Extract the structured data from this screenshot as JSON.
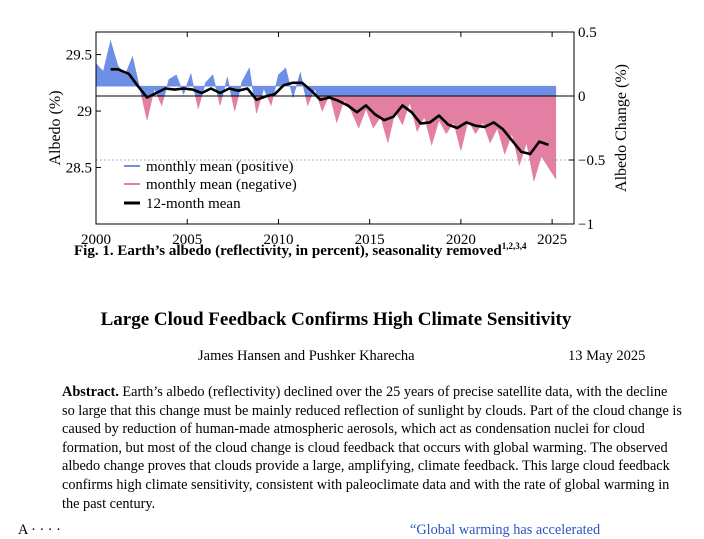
{
  "chart_data": {
    "type": "area",
    "xlabel": "",
    "ylabel": "Albedo (%)",
    "y2label": "Albedo Change (%)",
    "xlim": [
      2000,
      2026.2
    ],
    "ylim": [
      28.0,
      29.7
    ],
    "y2lim": [
      -1.0,
      0.5
    ],
    "baseline": 29.22,
    "xticks": [
      "2000",
      "2005",
      "2010",
      "2015",
      "2020",
      "2025"
    ],
    "yticks": [
      "28.5",
      "29",
      "29.5"
    ],
    "y2ticks": [
      "-1",
      "-0.5",
      "0",
      "0.5"
    ],
    "legend_position": "lower-left",
    "legend": [
      "monthly mean (positive)",
      "monthly mean (negative)",
      "12-month mean"
    ],
    "colors": {
      "positive": "#6d8fe6",
      "negative": "#e47fa4",
      "mean": "#000000",
      "reference_line": "#8fa0b8"
    },
    "series": [
      {
        "name": "12-month mean",
        "x": [
          2000.8,
          2001.2,
          2001.8,
          2002.3,
          2002.8,
          2003.3,
          2003.8,
          2004.3,
          2004.8,
          2005.3,
          2005.8,
          2006.3,
          2006.8,
          2007.3,
          2007.8,
          2008.3,
          2008.8,
          2009.3,
          2009.8,
          2010.3,
          2010.8,
          2011.3,
          2011.8,
          2012.3,
          2012.8,
          2013.3,
          2013.8,
          2014.3,
          2014.8,
          2015.3,
          2015.8,
          2016.3,
          2016.8,
          2017.3,
          2017.8,
          2018.3,
          2018.8,
          2019.3,
          2019.8,
          2020.3,
          2020.8,
          2021.3,
          2021.8,
          2022.3,
          2022.8,
          2023.3,
          2023.8,
          2024.3,
          2024.8
        ],
        "y": [
          29.37,
          29.37,
          29.33,
          29.22,
          29.12,
          29.16,
          29.2,
          29.19,
          29.2,
          29.19,
          29.16,
          29.2,
          29.16,
          29.2,
          29.18,
          29.2,
          29.1,
          29.13,
          29.15,
          29.23,
          29.25,
          29.25,
          29.18,
          29.1,
          29.12,
          29.09,
          29.05,
          28.99,
          29.05,
          28.97,
          28.92,
          28.95,
          29.05,
          28.99,
          28.89,
          28.9,
          28.96,
          28.88,
          28.85,
          28.9,
          28.87,
          28.86,
          28.9,
          28.84,
          28.74,
          28.64,
          28.62,
          28.73,
          28.7
        ]
      },
      {
        "name": "monthly mean",
        "x": [
          2000.0,
          2000.4,
          2000.8,
          2001.2,
          2001.6,
          2002.0,
          2002.4,
          2002.8,
          2003.2,
          2003.6,
          2004.0,
          2004.4,
          2004.8,
          2005.2,
          2005.6,
          2006.0,
          2006.4,
          2006.8,
          2007.2,
          2007.6,
          2008.0,
          2008.4,
          2008.8,
          2009.2,
          2009.6,
          2010.0,
          2010.4,
          2010.8,
          2011.2,
          2011.6,
          2012.0,
          2012.4,
          2012.8,
          2013.2,
          2013.6,
          2014.0,
          2014.4,
          2014.8,
          2015.2,
          2015.6,
          2016.0,
          2016.4,
          2016.8,
          2017.2,
          2017.6,
          2018.0,
          2018.4,
          2018.8,
          2019.2,
          2019.6,
          2020.0,
          2020.4,
          2020.8,
          2021.2,
          2021.6,
          2022.0,
          2022.4,
          2022.8,
          2023.2,
          2023.6,
          2024.0,
          2024.4,
          2024.8,
          2025.2
        ],
        "y": [
          29.42,
          29.35,
          29.62,
          29.4,
          29.32,
          29.48,
          29.2,
          28.92,
          29.2,
          29.05,
          29.28,
          29.32,
          29.15,
          29.33,
          29.02,
          29.25,
          29.32,
          29.05,
          29.3,
          29.0,
          29.26,
          29.38,
          28.98,
          29.2,
          29.05,
          29.32,
          29.38,
          29.12,
          29.34,
          29.05,
          29.2,
          29.0,
          29.15,
          28.9,
          29.1,
          29.0,
          28.85,
          29.02,
          28.85,
          28.95,
          28.72,
          29.0,
          28.88,
          29.08,
          28.82,
          28.95,
          28.7,
          28.92,
          28.8,
          28.9,
          28.65,
          28.92,
          28.8,
          28.9,
          28.72,
          28.85,
          28.62,
          28.8,
          28.52,
          28.72,
          28.38,
          28.6,
          28.5,
          28.4
        ]
      }
    ]
  },
  "caption": {
    "text": "Fig. 1. Earth’s albedo (reflectivity, in percent), seasonality removed",
    "refs": "1,2,3,4"
  },
  "paper": {
    "title": "Large Cloud Feedback Confirms High Climate Sensitivity",
    "authors": "James Hansen and Pushker Kharecha",
    "date": "13 May 2025",
    "abstract_label": "Abstract.",
    "abstract_text": "Earth’s albedo (reflectivity) declined over the 25 years of precise satellite data, with the decline so large that this change must be mainly reduced reflection of sunlight by clouds. Part of the cloud change is caused by reduction of human-made atmospheric aerosols, which act as condensation nuclei for cloud formation, but most of the cloud change is cloud feedback that occurs with global warming. The observed albedo change proves that clouds provide a large, amplifying, climate feedback. This large cloud feedback confirms high climate sensitivity, consistent with paleoclimate data and with the rate of global warming in the past century.",
    "next_line_start": "A     ·    ·                    ·                           ·",
    "next_line_link": "“Global warming has accelerated"
  }
}
